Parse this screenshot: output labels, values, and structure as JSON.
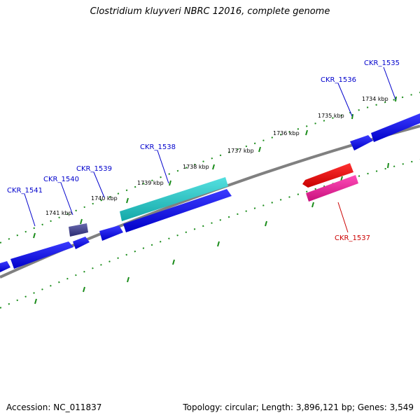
{
  "title": "Clostridium kluyveri NBRC 12016, complete genome",
  "footer": {
    "accession": "Accession: NC_011837",
    "stats": "Topology: circular; Length: 3,896,121 bp; Genes: 3,549"
  },
  "ticks": [
    "1734 kbp",
    "1735 kbp",
    "1736 kbp",
    "1737 kbp",
    "1738 kbp",
    "1739 kbp",
    "1740 kbp",
    "1741 kbp"
  ],
  "genes": [
    {
      "id": "CKR_1535",
      "strand": "forward",
      "color": "#0000ff",
      "label_color": "#0000cc"
    },
    {
      "id": "CKR_1536",
      "strand": "forward",
      "color": "#0000ff",
      "label_color": "#0000cc"
    },
    {
      "id": "CKR_1537",
      "strand": "reverse",
      "color": "#ff0000",
      "label_color": "#cc0000"
    },
    {
      "id": "CKR_1538",
      "strand": "forward",
      "color": "#1fc8c8",
      "label_color": "#0000cc"
    },
    {
      "id": "CKR_1539",
      "strand": "forward",
      "color": "#0000ff",
      "label_color": "#0000cc"
    },
    {
      "id": "CKR_1540",
      "strand": "forward",
      "color": "#3c3c8c",
      "label_color": "#0000cc"
    },
    {
      "id": "CKR_1541",
      "strand": "forward",
      "color": "#0000ff",
      "label_color": "#0000cc"
    }
  ],
  "colors": {
    "backbone": "#808080",
    "ruler_dots": "#1a8c1a",
    "forward_gene": "#0000ff",
    "reverse_gene": "#ff0000",
    "reverse_gene_pink": "#e8209a",
    "cyan_gene": "#1fc8c8",
    "dark_gene": "#3c3c8c"
  }
}
